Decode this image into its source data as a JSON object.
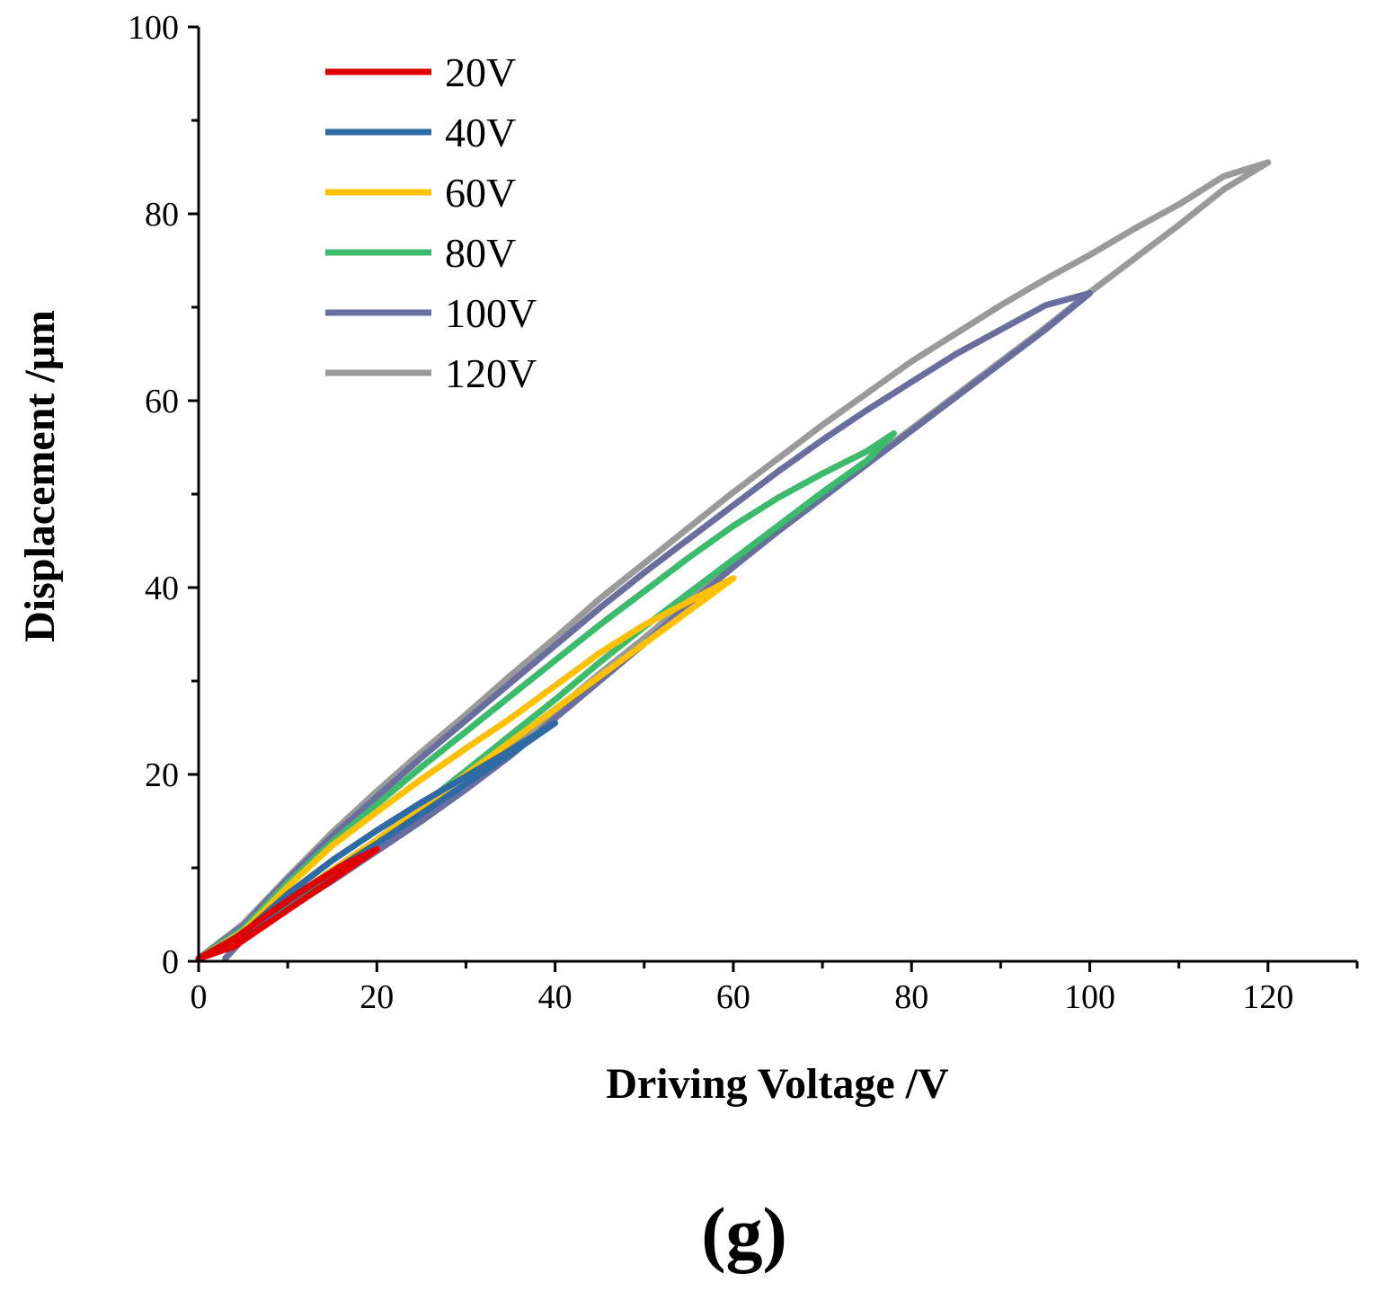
{
  "chart_data": {
    "type": "line",
    "panel_label": "(g)",
    "title": "",
    "xlabel": "Driving Voltage  /V",
    "ylabel": "Displacement  /μm",
    "xlim": [
      0,
      130
    ],
    "ylim": [
      0,
      100
    ],
    "x_ticks": [
      0,
      20,
      40,
      60,
      80,
      100,
      120
    ],
    "y_ticks": [
      0,
      20,
      40,
      60,
      80,
      100
    ],
    "x_minor_step": 10,
    "y_minor_step": 10,
    "grid": false,
    "legend_position": "top-left",
    "series": [
      {
        "name": "20V",
        "color": "#e00000",
        "ascending": [
          [
            0,
            0.3
          ],
          [
            4,
            2.4
          ],
          [
            8,
            5.2
          ],
          [
            12,
            7.8
          ],
          [
            16,
            10.2
          ],
          [
            20,
            12.0
          ]
        ],
        "descending": [
          [
            20,
            12.0
          ],
          [
            16,
            9.4
          ],
          [
            12,
            6.8
          ],
          [
            8,
            4.2
          ],
          [
            4,
            1.6
          ],
          [
            0,
            0.3
          ]
        ]
      },
      {
        "name": "40V",
        "color": "#2e6aa3",
        "ascending": [
          [
            0,
            0.3
          ],
          [
            5,
            3.0
          ],
          [
            10,
            7.2
          ],
          [
            15,
            10.8
          ],
          [
            20,
            14.0
          ],
          [
            25,
            17.0
          ],
          [
            30,
            19.8
          ],
          [
            35,
            22.6
          ],
          [
            40,
            25.5
          ]
        ],
        "descending": [
          [
            40,
            25.5
          ],
          [
            35,
            22.2
          ],
          [
            30,
            19.0
          ],
          [
            25,
            15.8
          ],
          [
            20,
            12.6
          ],
          [
            15,
            9.6
          ],
          [
            10,
            6.4
          ],
          [
            5,
            3.0
          ],
          [
            0,
            0.3
          ]
        ]
      },
      {
        "name": "60V",
        "color": "#ffc000",
        "ascending": [
          [
            0,
            0.3
          ],
          [
            5,
            3.2
          ],
          [
            10,
            8.0
          ],
          [
            15,
            12.4
          ],
          [
            20,
            16.0
          ],
          [
            25,
            19.5
          ],
          [
            30,
            22.8
          ],
          [
            35,
            26.0
          ],
          [
            40,
            29.5
          ],
          [
            45,
            33.0
          ],
          [
            50,
            36.0
          ],
          [
            55,
            38.5
          ],
          [
            60,
            41.0
          ]
        ],
        "descending": [
          [
            60,
            41.0
          ],
          [
            55,
            37.5
          ],
          [
            50,
            34.0
          ],
          [
            45,
            30.5
          ],
          [
            40,
            27.0
          ],
          [
            35,
            23.5
          ],
          [
            30,
            20.0
          ],
          [
            25,
            16.5
          ],
          [
            20,
            13.0
          ],
          [
            15,
            9.8
          ],
          [
            10,
            6.5
          ],
          [
            5,
            3.0
          ],
          [
            0,
            0.3
          ]
        ]
      },
      {
        "name": "80V",
        "color": "#3cbb6c",
        "ascending": [
          [
            0,
            0.3
          ],
          [
            5,
            3.5
          ],
          [
            10,
            8.4
          ],
          [
            15,
            12.8
          ],
          [
            20,
            16.8
          ],
          [
            25,
            20.8
          ],
          [
            30,
            24.6
          ],
          [
            35,
            28.4
          ],
          [
            40,
            32.2
          ],
          [
            45,
            36.0
          ],
          [
            50,
            39.6
          ],
          [
            55,
            43.2
          ],
          [
            60,
            46.6
          ],
          [
            65,
            49.6
          ],
          [
            70,
            52.2
          ],
          [
            75,
            54.6
          ],
          [
            78,
            56.5
          ]
        ],
        "descending": [
          [
            78,
            56.5
          ],
          [
            75,
            53.6
          ],
          [
            70,
            50.2
          ],
          [
            65,
            46.6
          ],
          [
            60,
            43.0
          ],
          [
            55,
            39.4
          ],
          [
            50,
            35.8
          ],
          [
            45,
            32.0
          ],
          [
            40,
            28.0
          ],
          [
            35,
            24.2
          ],
          [
            30,
            20.4
          ],
          [
            25,
            16.6
          ],
          [
            20,
            13.0
          ],
          [
            15,
            9.6
          ],
          [
            10,
            6.2
          ],
          [
            5,
            3.0
          ],
          [
            0,
            0.3
          ]
        ]
      },
      {
        "name": "100V",
        "color": "#6a6e9e",
        "ascending": [
          [
            0,
            0.3
          ],
          [
            5,
            3.8
          ],
          [
            10,
            8.8
          ],
          [
            15,
            13.4
          ],
          [
            20,
            17.6
          ],
          [
            25,
            21.8
          ],
          [
            30,
            25.8
          ],
          [
            35,
            29.8
          ],
          [
            40,
            33.8
          ],
          [
            45,
            37.8
          ],
          [
            50,
            41.6
          ],
          [
            55,
            45.2
          ],
          [
            60,
            48.8
          ],
          [
            65,
            52.4
          ],
          [
            70,
            55.8
          ],
          [
            75,
            59.0
          ],
          [
            80,
            62.0
          ],
          [
            85,
            65.0
          ],
          [
            90,
            67.6
          ],
          [
            95,
            70.2
          ],
          [
            100,
            71.5
          ]
        ],
        "descending": [
          [
            100,
            71.5
          ],
          [
            95,
            67.6
          ],
          [
            90,
            64.0
          ],
          [
            85,
            60.4
          ],
          [
            80,
            56.8
          ],
          [
            75,
            53.2
          ],
          [
            70,
            49.6
          ],
          [
            65,
            46.0
          ],
          [
            60,
            42.2
          ],
          [
            55,
            38.2
          ],
          [
            50,
            34.0
          ],
          [
            45,
            30.0
          ],
          [
            40,
            26.0
          ],
          [
            35,
            22.0
          ],
          [
            30,
            18.4
          ],
          [
            25,
            15.0
          ],
          [
            20,
            11.8
          ],
          [
            15,
            8.6
          ],
          [
            10,
            5.6
          ],
          [
            5,
            2.4
          ],
          [
            3,
            0.3
          ]
        ]
      },
      {
        "name": "120V",
        "color": "#9a9a9a",
        "ascending": [
          [
            0,
            0.3
          ],
          [
            5,
            4.0
          ],
          [
            10,
            9.0
          ],
          [
            15,
            13.8
          ],
          [
            20,
            18.2
          ],
          [
            25,
            22.4
          ],
          [
            30,
            26.4
          ],
          [
            35,
            30.6
          ],
          [
            40,
            34.6
          ],
          [
            45,
            38.8
          ],
          [
            50,
            42.6
          ],
          [
            55,
            46.4
          ],
          [
            60,
            50.2
          ],
          [
            65,
            53.8
          ],
          [
            70,
            57.4
          ],
          [
            75,
            60.8
          ],
          [
            80,
            64.2
          ],
          [
            85,
            67.2
          ],
          [
            90,
            70.2
          ],
          [
            95,
            73.0
          ],
          [
            100,
            75.6
          ],
          [
            105,
            78.4
          ],
          [
            110,
            81.0
          ],
          [
            115,
            84.0
          ],
          [
            120,
            85.5
          ]
        ],
        "descending": [
          [
            120,
            85.5
          ],
          [
            115,
            82.6
          ],
          [
            110,
            78.8
          ],
          [
            105,
            75.2
          ],
          [
            100,
            71.6
          ],
          [
            95,
            67.8
          ],
          [
            90,
            64.2
          ],
          [
            85,
            60.6
          ],
          [
            80,
            57.0
          ],
          [
            75,
            53.4
          ],
          [
            70,
            49.8
          ],
          [
            65,
            46.2
          ],
          [
            60,
            42.4
          ],
          [
            55,
            38.6
          ],
          [
            50,
            34.6
          ],
          [
            45,
            30.8
          ],
          [
            40,
            26.8
          ],
          [
            35,
            23.0
          ],
          [
            30,
            19.2
          ],
          [
            25,
            15.6
          ],
          [
            20,
            12.2
          ],
          [
            15,
            8.8
          ],
          [
            10,
            5.8
          ],
          [
            5,
            2.6
          ],
          [
            3,
            0.3
          ]
        ]
      }
    ]
  }
}
